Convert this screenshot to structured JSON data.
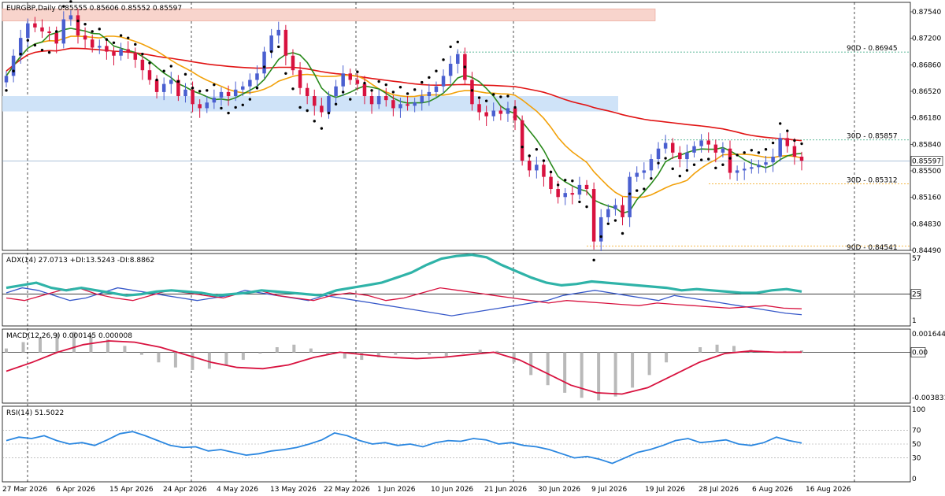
{
  "header": {
    "symbol": "EURGBP,Daily",
    "ohlc": "0.85555 0.85606 0.85552 0.85597"
  },
  "colors": {
    "bull": "#4a5fd0",
    "bear": "#d8123f",
    "ma_fast": "#2a8a1c",
    "ma_mid": "#f2a10a",
    "ma_slow": "#e11414",
    "sar": "#000000",
    "adx": "#2fb3a8",
    "di_plus": "#d8123f",
    "di_minus": "#3658c9",
    "macd_hist": "#b9b9b9",
    "macd_signal": "#d8123f",
    "rsi": "#2b87e0",
    "fib": "#2aa37a",
    "fib_low": "#f2a10a",
    "zone_red": "#f8d4cc",
    "zone_blue": "#cfe3f8"
  },
  "chart_data": [
    {
      "type": "candlestick",
      "title": "EURGBP,Daily",
      "ylim": [
        0.8449,
        0.8756
      ],
      "y_ticks": [
        "0.87540",
        "0.87200",
        "0.86860",
        "0.86520",
        "0.86180",
        "0.85840",
        "0.85500",
        "0.85160",
        "0.84830",
        "0.84490"
      ],
      "current_price": "0.85597",
      "x_labels": [
        "27 Mar 2026",
        "6 Apr 2026",
        "15 Apr 2026",
        "24 Apr 2026",
        "4 May 2026",
        "13 May 2026",
        "22 May 2026",
        "1 Jun 2026",
        "10 Jun 2026",
        "21 Jun 2026",
        "30 Jun 2026",
        "9 Jul 2026",
        "19 Jul 2026",
        "28 Jul 2026",
        "6 Aug 2026",
        "16 Aug 2026"
      ],
      "fib_levels": [
        {
          "label": "90D - 0.86945",
          "value": 0.86945
        },
        {
          "label": "30D - 0.85857",
          "value": 0.85857
        },
        {
          "label": "30D - 0.85312",
          "value": 0.85312
        },
        {
          "label": "90D - 0.84541",
          "value": 0.84541
        }
      ],
      "zones": [
        {
          "from": 0.8733,
          "to": 0.8748
        },
        {
          "from": 0.8621,
          "to": 0.864
        }
      ],
      "closes": [
        0.8665,
        0.869,
        0.8712,
        0.873,
        0.8725,
        0.872,
        0.8718,
        0.8705,
        0.8735,
        0.874,
        0.8715,
        0.871,
        0.87,
        0.8702,
        0.8695,
        0.869,
        0.8698,
        0.8694,
        0.8685,
        0.8672,
        0.866,
        0.8645,
        0.8655,
        0.866,
        0.864,
        0.8648,
        0.863,
        0.8625,
        0.8632,
        0.8638,
        0.8645,
        0.864,
        0.8648,
        0.8652,
        0.866,
        0.8668,
        0.8695,
        0.8715,
        0.8722,
        0.869,
        0.8672,
        0.865,
        0.864,
        0.8628,
        0.862,
        0.864,
        0.8652,
        0.8668,
        0.866,
        0.8655,
        0.864,
        0.863,
        0.864,
        0.8635,
        0.8625,
        0.863,
        0.8628,
        0.8632,
        0.864,
        0.8645,
        0.8652,
        0.8665,
        0.868,
        0.8692,
        0.866,
        0.863,
        0.862,
        0.8615,
        0.8622,
        0.8618,
        0.8625,
        0.861,
        0.856,
        0.8548,
        0.8555,
        0.854,
        0.8525,
        0.8515,
        0.852,
        0.8518,
        0.853,
        0.8525,
        0.846,
        0.849,
        0.85,
        0.8505,
        0.849,
        0.854,
        0.8545,
        0.8548,
        0.8562,
        0.8575,
        0.8582,
        0.857,
        0.8562,
        0.857,
        0.8578,
        0.8585,
        0.858,
        0.857,
        0.8575,
        0.8545,
        0.8548,
        0.855,
        0.8552,
        0.8555,
        0.8558,
        0.8565,
        0.8588,
        0.8578,
        0.8565,
        0.856
      ],
      "series": [
        {
          "name": "SMA fast"
        },
        {
          "name": "SMA mid"
        },
        {
          "name": "SMA slow"
        },
        {
          "name": "Parabolic SAR"
        }
      ]
    },
    {
      "type": "line",
      "title": "ADX(14) 27.0713 +DI:13.5243 -DI:8.8862",
      "ylim": [
        0,
        57
      ],
      "y_ticks": [
        "57",
        "25",
        "1"
      ],
      "adx": [
        30,
        32,
        34,
        30,
        28,
        30,
        28,
        26,
        24,
        25,
        27,
        28,
        27,
        26,
        24,
        25,
        26,
        28,
        27,
        26,
        25,
        24,
        28,
        30,
        32,
        34,
        38,
        42,
        48,
        53,
        55,
        56,
        54,
        48,
        43,
        38,
        34,
        32,
        33,
        35,
        34,
        33,
        32,
        31,
        30,
        28,
        29,
        28,
        27,
        26,
        26,
        28,
        29,
        27.07
      ],
      "di_plus": [
        22,
        20,
        24,
        28,
        30,
        25,
        22,
        20,
        24,
        28,
        26,
        24,
        22,
        26,
        28,
        24,
        22,
        20,
        24,
        26,
        24,
        20,
        22,
        26,
        30,
        28,
        26,
        24,
        22,
        20,
        18,
        20,
        19,
        18,
        17,
        16,
        18,
        17,
        16,
        15,
        14,
        15,
        16,
        14,
        13.52
      ],
      "di_minus": [
        26,
        30,
        28,
        24,
        20,
        22,
        26,
        30,
        28,
        26,
        24,
        22,
        20,
        22,
        24,
        28,
        26,
        24,
        22,
        20,
        24,
        22,
        20,
        18,
        16,
        14,
        12,
        10,
        8,
        10,
        12,
        14,
        16,
        18,
        20,
        24,
        26,
        28,
        26,
        24,
        22,
        20,
        24,
        22,
        20,
        18,
        16,
        14,
        12,
        10,
        8.89
      ]
    },
    {
      "type": "bar",
      "title": "MACD(12,26,9) 0.000145 0.000008",
      "ylim": [
        -0.003831,
        0.001644
      ],
      "y_ticks": [
        "0.001644",
        "0.00",
        "-0.003831"
      ],
      "hist": [
        0.0003,
        0.0008,
        0.0012,
        0.0015,
        0.0016,
        0.0014,
        0.001,
        0.0005,
        -0.0002,
        -0.0008,
        -0.0012,
        -0.0014,
        -0.0013,
        -0.001,
        -0.0006,
        -0.0001,
        0.0004,
        0.0006,
        0.0003,
        -0.0002,
        -0.0005,
        -0.0006,
        -0.0004,
        -0.0002,
        -0.0001,
        -0.0002,
        -0.0003,
        -0.0001,
        0.0002,
        0.0001,
        -0.0008,
        -0.0018,
        -0.0026,
        -0.0032,
        -0.0036,
        -0.0038,
        -0.0035,
        -0.0028,
        -0.0018,
        -0.0008,
        0.0,
        0.0004,
        0.0006,
        0.0005,
        0.0002,
        0.0001,
        0.0001,
        0.000145
      ],
      "signal": [
        -0.0015,
        -0.0008,
        0.0,
        0.0006,
        0.0009,
        0.0008,
        0.0004,
        -0.0002,
        -0.0008,
        -0.0012,
        -0.0013,
        -0.001,
        -0.0004,
        0.0,
        -0.0002,
        -0.0004,
        -0.0005,
        -0.0004,
        -0.0002,
        0.0,
        -0.0006,
        -0.0016,
        -0.0026,
        -0.0032,
        -0.0033,
        -0.0028,
        -0.0018,
        -0.0008,
        -0.0001,
        0.0001,
        0.0,
        8e-06
      ]
    },
    {
      "type": "line",
      "title": "RSI(14) 51.5022",
      "ylim": [
        0,
        100
      ],
      "y_ticks": [
        "100",
        "70",
        "50",
        "30",
        "0"
      ],
      "values": [
        55,
        60,
        58,
        62,
        55,
        50,
        52,
        48,
        56,
        65,
        68,
        62,
        55,
        48,
        45,
        46,
        40,
        42,
        38,
        34,
        36,
        40,
        42,
        45,
        50,
        56,
        66,
        62,
        55,
        50,
        52,
        48,
        50,
        46,
        52,
        55,
        54,
        58,
        56,
        50,
        52,
        48,
        46,
        42,
        36,
        30,
        32,
        28,
        22,
        30,
        38,
        42,
        48,
        55,
        58,
        52,
        54,
        56,
        50,
        48,
        52,
        60,
        55,
        51.5
      ]
    }
  ]
}
